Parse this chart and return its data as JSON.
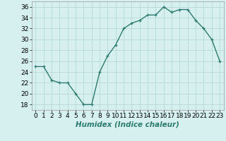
{
  "x": [
    0,
    1,
    2,
    3,
    4,
    5,
    6,
    7,
    8,
    9,
    10,
    11,
    12,
    13,
    14,
    15,
    16,
    17,
    18,
    19,
    20,
    21,
    22,
    23
  ],
  "y": [
    25,
    25,
    22.5,
    22,
    22,
    20,
    18,
    18,
    24,
    27,
    29,
    32,
    33,
    33.5,
    34.5,
    34.5,
    36,
    35,
    35.5,
    35.5,
    33.5,
    32,
    30,
    26
  ],
  "line_color": "#2d7b6e",
  "marker": "+",
  "bg_color": "#d6f0f0",
  "grid_color": "#b8d8d8",
  "xlabel": "Humidex (Indice chaleur)",
  "xlim": [
    -0.5,
    23.5
  ],
  "ylim": [
    17,
    37
  ],
  "yticks": [
    18,
    20,
    22,
    24,
    26,
    28,
    30,
    32,
    34,
    36
  ],
  "xticks": [
    0,
    1,
    2,
    3,
    4,
    5,
    6,
    7,
    8,
    9,
    10,
    11,
    12,
    13,
    14,
    15,
    16,
    17,
    18,
    19,
    20,
    21,
    22,
    23
  ],
  "xlabel_fontsize": 7.5,
  "tick_fontsize": 6.5,
  "line_width": 1.0,
  "marker_size": 3.5
}
